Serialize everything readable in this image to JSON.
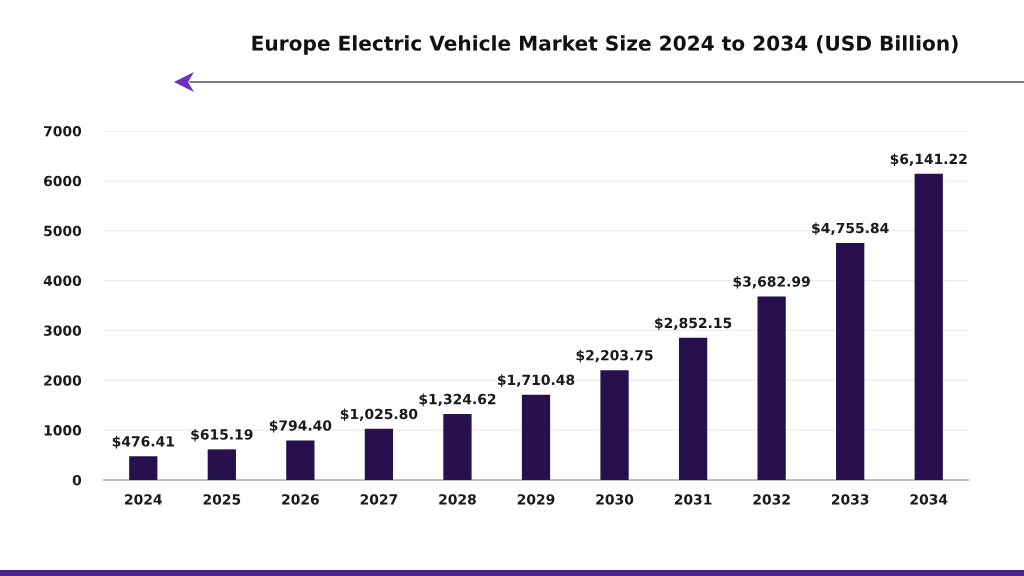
{
  "chart_data": {
    "type": "bar",
    "title": "Europe Electric Vehicle Market Size 2024 to 2034 (USD Billion)",
    "categories": [
      "2024",
      "2025",
      "2026",
      "2027",
      "2028",
      "2029",
      "2030",
      "2031",
      "2032",
      "2033",
      "2034"
    ],
    "values": [
      476.41,
      615.19,
      794.4,
      1025.8,
      1324.62,
      1710.48,
      2203.75,
      2852.15,
      3682.99,
      4755.84,
      6141.22
    ],
    "value_labels": [
      "$476.41",
      "$615.19",
      "$794.40",
      "$1,025.80",
      "$1,324.62",
      "$1,710.48",
      "$2,203.75",
      "$2,852.15",
      "$3,682.99",
      "$4,755.84",
      "$6,141.22"
    ],
    "color": "#28104e",
    "ylim": [
      0,
      7000
    ],
    "yticks": [
      0,
      1000,
      2000,
      3000,
      4000,
      5000,
      6000,
      7000
    ],
    "grid": "y"
  }
}
